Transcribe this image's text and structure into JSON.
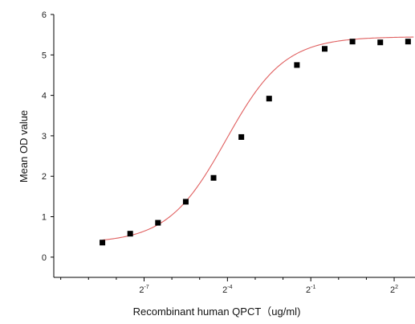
{
  "chart_data": {
    "type": "scatter",
    "title": "",
    "xlabel": "Recombinant human  QPCT（ug/ml)",
    "ylabel": "Mean OD value",
    "x_scale": "log2",
    "xlim_log2": [
      -10.25,
      2.75
    ],
    "ylim": [
      -0.5,
      6
    ],
    "y_ticks": [
      0,
      1,
      2,
      3,
      4,
      5,
      6
    ],
    "x_tick_exponents": [
      -7,
      -4,
      -1,
      2
    ],
    "x_tick_base": "2",
    "grid": false,
    "legend": "none",
    "series": [
      {
        "x_log2": [
          -8.5,
          -7.5,
          -6.5,
          -5.5,
          -4.5,
          -3.5,
          -2.5,
          -1.5,
          -0.5,
          0.5,
          1.5,
          2.5
        ],
        "values": [
          0.36,
          0.58,
          0.85,
          1.37,
          1.96,
          2.97,
          3.92,
          4.75,
          5.15,
          5.33,
          5.31,
          5.33
        ]
      }
    ],
    "fit_curve": {
      "bottom": 0.35,
      "top": 5.45,
      "mid_log2": -4.05,
      "slope": 0.95
    },
    "colors": {
      "points": "#000000",
      "curve": "#e06060",
      "axis": "#000000"
    }
  }
}
